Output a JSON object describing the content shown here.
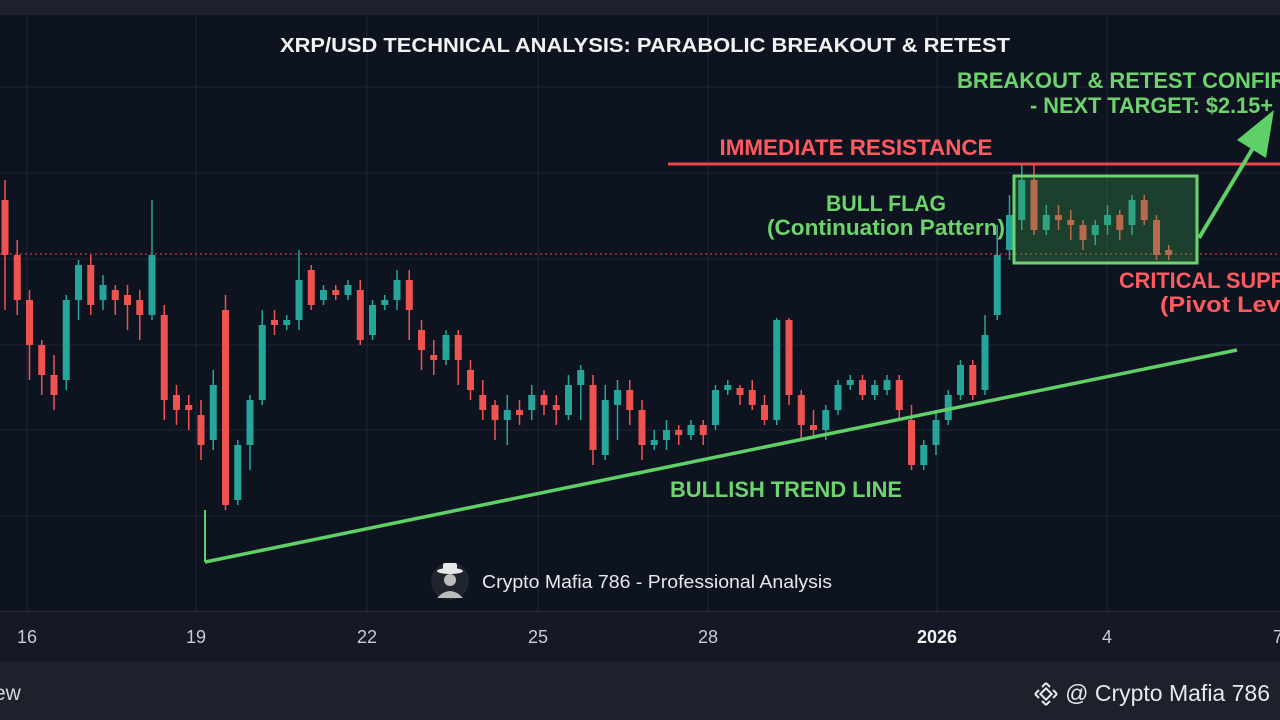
{
  "chart_data": {
    "type": "candlestick",
    "title": "XRP/USD TECHNICAL ANALYSIS: PARABOLIC BREAKOUT & RETEST",
    "x_tick_labels": [
      "16",
      "19",
      "22",
      "25",
      "28",
      "2026",
      "4",
      "7"
    ],
    "annotations": {
      "resistance": "IMMEDIATE RESISTANCE",
      "breakout_line1": "BREAKOUT & RETEST CONFIRMED",
      "breakout_line2": "- NEXT TARGET: $2.15+",
      "bull_flag": "BULL FLAG",
      "bull_flag_sub": "(Continuation Pattern)",
      "critical_support": "CRITICAL SUPPORT",
      "critical_support_sub": "(Pivot Level)",
      "trend_line": "BULLISH TREND LINE"
    },
    "candles": [
      [
        0,
        200,
        255,
        180,
        310,
        "d"
      ],
      [
        1,
        255,
        300,
        240,
        315,
        "d"
      ],
      [
        2,
        300,
        345,
        290,
        380,
        "d"
      ],
      [
        3,
        345,
        375,
        340,
        395,
        "d"
      ],
      [
        4,
        375,
        395,
        355,
        410,
        "d"
      ],
      [
        5,
        380,
        300,
        295,
        390,
        "u"
      ],
      [
        6,
        300,
        265,
        260,
        320,
        "u"
      ],
      [
        7,
        265,
        305,
        255,
        315,
        "d"
      ],
      [
        8,
        300,
        285,
        275,
        310,
        "u"
      ],
      [
        9,
        290,
        300,
        285,
        315,
        "d"
      ],
      [
        10,
        295,
        305,
        285,
        330,
        "d"
      ],
      [
        11,
        300,
        315,
        290,
        340,
        "d"
      ],
      [
        12,
        315,
        255,
        200,
        320,
        "u"
      ],
      [
        13,
        315,
        400,
        305,
        420,
        "d"
      ],
      [
        14,
        395,
        410,
        385,
        425,
        "d"
      ],
      [
        15,
        405,
        410,
        395,
        430,
        "d"
      ],
      [
        16,
        415,
        445,
        400,
        460,
        "d"
      ],
      [
        17,
        440,
        385,
        370,
        450,
        "u"
      ],
      [
        18,
        310,
        505,
        295,
        510,
        "d"
      ],
      [
        19,
        500,
        445,
        440,
        505,
        "u"
      ],
      [
        20,
        445,
        400,
        395,
        470,
        "u"
      ],
      [
        21,
        400,
        325,
        310,
        405,
        "u"
      ],
      [
        22,
        320,
        325,
        310,
        335,
        "d"
      ],
      [
        23,
        325,
        320,
        315,
        330,
        "u"
      ],
      [
        24,
        320,
        280,
        250,
        330,
        "u"
      ],
      [
        25,
        270,
        305,
        265,
        310,
        "d"
      ],
      [
        26,
        300,
        290,
        285,
        305,
        "u"
      ],
      [
        27,
        290,
        295,
        285,
        300,
        "d"
      ],
      [
        28,
        295,
        285,
        280,
        300,
        "u"
      ],
      [
        29,
        290,
        340,
        280,
        345,
        "d"
      ],
      [
        30,
        335,
        305,
        300,
        340,
        "u"
      ],
      [
        31,
        305,
        300,
        295,
        310,
        "u"
      ],
      [
        32,
        300,
        280,
        270,
        310,
        "u"
      ],
      [
        33,
        280,
        310,
        270,
        340,
        "d"
      ],
      [
        34,
        330,
        350,
        320,
        370,
        "d"
      ],
      [
        35,
        355,
        360,
        340,
        375,
        "d"
      ],
      [
        36,
        360,
        335,
        330,
        365,
        "u"
      ],
      [
        37,
        335,
        360,
        330,
        385,
        "d"
      ],
      [
        38,
        370,
        390,
        360,
        400,
        "d"
      ],
      [
        39,
        395,
        410,
        380,
        420,
        "d"
      ],
      [
        40,
        405,
        420,
        400,
        440,
        "d"
      ],
      [
        41,
        420,
        410,
        395,
        445,
        "u"
      ],
      [
        42,
        410,
        415,
        400,
        425,
        "d"
      ],
      [
        43,
        410,
        395,
        385,
        420,
        "u"
      ],
      [
        44,
        395,
        405,
        390,
        415,
        "d"
      ],
      [
        45,
        405,
        410,
        395,
        425,
        "d"
      ],
      [
        46,
        415,
        385,
        375,
        420,
        "u"
      ],
      [
        47,
        385,
        370,
        365,
        420,
        "u"
      ],
      [
        48,
        385,
        450,
        375,
        465,
        "d"
      ],
      [
        49,
        455,
        400,
        385,
        460,
        "u"
      ],
      [
        50,
        405,
        390,
        380,
        440,
        "u"
      ],
      [
        51,
        390,
        410,
        380,
        425,
        "d"
      ],
      [
        52,
        410,
        445,
        400,
        460,
        "d"
      ],
      [
        53,
        445,
        440,
        430,
        450,
        "u"
      ],
      [
        54,
        440,
        430,
        420,
        450,
        "u"
      ],
      [
        55,
        430,
        435,
        425,
        445,
        "d"
      ],
      [
        56,
        435,
        425,
        420,
        440,
        "u"
      ],
      [
        57,
        425,
        435,
        420,
        445,
        "d"
      ],
      [
        58,
        425,
        390,
        385,
        430,
        "u"
      ],
      [
        59,
        390,
        385,
        380,
        395,
        "u"
      ],
      [
        60,
        388,
        395,
        385,
        405,
        "d"
      ],
      [
        61,
        390,
        405,
        380,
        410,
        "d"
      ],
      [
        62,
        405,
        420,
        395,
        425,
        "d"
      ],
      [
        63,
        420,
        320,
        318,
        425,
        "u"
      ],
      [
        64,
        320,
        395,
        318,
        405,
        "d"
      ],
      [
        65,
        395,
        425,
        390,
        440,
        "d"
      ],
      [
        66,
        425,
        430,
        410,
        435,
        "d"
      ],
      [
        67,
        430,
        410,
        405,
        440,
        "u"
      ],
      [
        68,
        410,
        385,
        380,
        415,
        "u"
      ],
      [
        69,
        385,
        380,
        375,
        390,
        "u"
      ],
      [
        70,
        380,
        395,
        375,
        400,
        "d"
      ],
      [
        71,
        395,
        385,
        380,
        400,
        "u"
      ],
      [
        72,
        390,
        380,
        375,
        395,
        "u"
      ],
      [
        73,
        380,
        410,
        375,
        420,
        "d"
      ],
      [
        74,
        420,
        465,
        405,
        470,
        "d"
      ],
      [
        75,
        465,
        445,
        440,
        470,
        "u"
      ],
      [
        76,
        445,
        420,
        410,
        455,
        "u"
      ],
      [
        77,
        420,
        395,
        390,
        425,
        "u"
      ],
      [
        78,
        395,
        365,
        360,
        400,
        "u"
      ],
      [
        79,
        365,
        395,
        360,
        400,
        "d"
      ],
      [
        80,
        390,
        335,
        315,
        395,
        "u"
      ],
      [
        81,
        315,
        255,
        225,
        320,
        "u"
      ],
      [
        82,
        250,
        215,
        195,
        260,
        "u"
      ],
      [
        83,
        220,
        180,
        165,
        230,
        "u"
      ],
      [
        84,
        180,
        230,
        165,
        235,
        "d"
      ],
      [
        85,
        230,
        215,
        205,
        235,
        "u"
      ],
      [
        86,
        215,
        220,
        205,
        230,
        "d"
      ],
      [
        87,
        220,
        225,
        210,
        240,
        "d"
      ],
      [
        88,
        225,
        240,
        220,
        250,
        "d"
      ],
      [
        89,
        235,
        225,
        220,
        245,
        "u"
      ],
      [
        90,
        225,
        215,
        205,
        235,
        "u"
      ],
      [
        91,
        215,
        230,
        210,
        240,
        "d"
      ],
      [
        92,
        225,
        200,
        195,
        235,
        "u"
      ],
      [
        93,
        200,
        220,
        195,
        225,
        "d"
      ],
      [
        94,
        220,
        255,
        215,
        260,
        "d"
      ],
      [
        95,
        250,
        255,
        245,
        260,
        "d"
      ]
    ],
    "ohlc_note": "candles are [index, open_y, close_y, high_y, low_y, direction] expressed as chart price-scale units (larger = lower price)"
  },
  "watermark": {
    "text": "Crypto Mafia 786 - Professional Analysis",
    "icon": "mafia-avatar-icon"
  },
  "footer": {
    "left_text": "ew",
    "credit_text": "@ Crypto Mafia 786",
    "credit_icon": "binance-logo-icon"
  },
  "colors": {
    "up": "#26a69a",
    "down": "#ef5350",
    "trend": "#5fd068",
    "resistance": "#e8484c",
    "annotation_green": "#6dd36d",
    "annotation_red": "#ff5a5f"
  }
}
